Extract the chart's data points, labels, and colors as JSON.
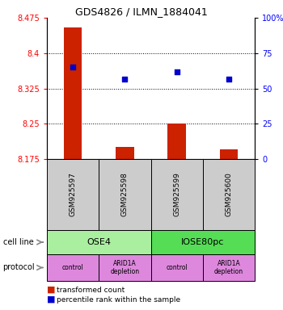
{
  "title": "GDS4826 / ILMN_1884041",
  "samples": [
    "GSM925597",
    "GSM925598",
    "GSM925599",
    "GSM925600"
  ],
  "bar_values": [
    8.455,
    8.2,
    8.25,
    8.195
  ],
  "bar_base": 8.175,
  "blue_dots": [
    8.37,
    8.345,
    8.36,
    8.345
  ],
  "ylim": [
    8.175,
    8.475
  ],
  "yticks_left": [
    8.175,
    8.25,
    8.325,
    8.4,
    8.475
  ],
  "yticks_right": [
    0,
    25,
    50,
    75,
    100
  ],
  "ytick_labels_right": [
    "0",
    "25",
    "50",
    "75",
    "100%"
  ],
  "dotted_lines": [
    8.4,
    8.325,
    8.25
  ],
  "cell_line_labels": [
    "OSE4",
    "IOSE80pc"
  ],
  "cell_line_spans": [
    [
      0,
      2
    ],
    [
      2,
      4
    ]
  ],
  "cell_line_colors": [
    "#aaeea0",
    "#55dd55"
  ],
  "protocol_labels": [
    "control",
    "ARID1A\ndepletion",
    "control",
    "ARID1A\ndepletion"
  ],
  "protocol_color": "#dd88dd",
  "bar_color": "#cc2200",
  "dot_color": "#0000cc",
  "sample_bg_color": "#cccccc",
  "legend_red_label": "transformed count",
  "legend_blue_label": "percentile rank within the sample"
}
